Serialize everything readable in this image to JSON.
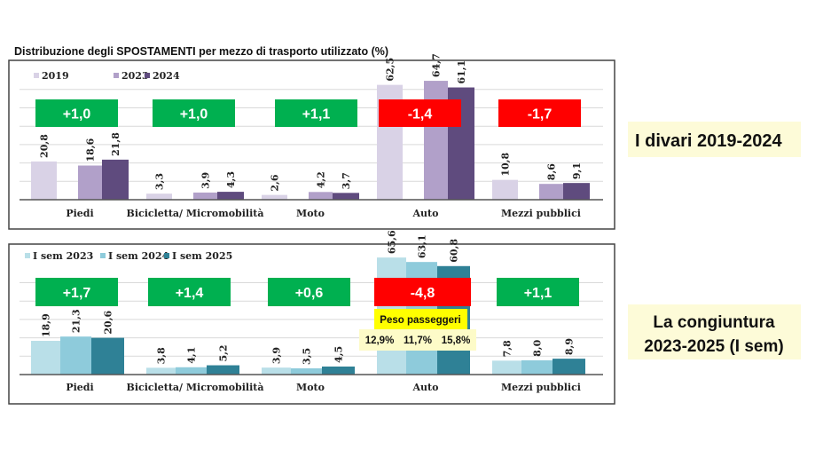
{
  "chart_data": [
    {
      "type": "bar",
      "title": "Distribuzione degli SPOSTAMENTI per mezzo di trasporto utilizzato (%)",
      "categories": [
        "Piedi",
        "Bicicletta/ Micromobilità",
        "Moto",
        "Auto",
        "Mezzi pubblici"
      ],
      "series": [
        {
          "name": "2019",
          "values": [
            20.8,
            3.3,
            2.6,
            62.5,
            10.8
          ],
          "labels": [
            "20,8",
            "3,3",
            "2,6",
            "62,5",
            "10,8"
          ],
          "color": "#d9d2e6"
        },
        {
          "name": "2023",
          "values": [
            18.6,
            3.9,
            4.2,
            64.7,
            8.6
          ],
          "labels": [
            "18,6",
            "3,9",
            "4,2",
            "64,7",
            "8,6"
          ],
          "color": "#b1a0c9"
        },
        {
          "name": "2024",
          "values": [
            21.8,
            4.3,
            3.7,
            61.1,
            9.1
          ],
          "labels": [
            "21,8",
            "4,3",
            "3,7",
            "61,1",
            "9,1"
          ],
          "color": "#5f4b7e"
        }
      ],
      "deltas": [
        "+1,0",
        "+1,0",
        "+1,1",
        "-1,4",
        "-1,7"
      ],
      "delta_colors": [
        "#00b050",
        "#00b050",
        "#00b050",
        "#ff0000",
        "#ff0000"
      ],
      "side_label": "I divari 2019-2024",
      "legend": "top-left",
      "grid": true
    },
    {
      "type": "bar",
      "categories": [
        "Piedi",
        "Bicicletta/ Micromobilità",
        "Moto",
        "Auto",
        "Mezzi pubblici"
      ],
      "series": [
        {
          "name": "I sem 2023",
          "values": [
            18.9,
            3.8,
            3.9,
            65.6,
            7.8
          ],
          "labels": [
            "18,9",
            "3,8",
            "3,9",
            "65,6",
            "7,8"
          ],
          "color": "#b9dfe8"
        },
        {
          "name": "I sem 2024",
          "values": [
            21.3,
            4.1,
            3.5,
            63.1,
            8.0
          ],
          "labels": [
            "21,3",
            "4,1",
            "3,5",
            "63,1",
            "8,0"
          ],
          "color": "#8ecbdb"
        },
        {
          "name": "I sem 2025",
          "values": [
            20.6,
            5.2,
            4.5,
            60.8,
            8.9
          ],
          "labels": [
            "20,6",
            "5,2",
            "4,5",
            "60,8",
            "8,9"
          ],
          "color": "#2f8196"
        }
      ],
      "deltas": [
        "+1,7",
        "+1,4",
        "+0,6",
        "-4,8",
        "+1,1"
      ],
      "delta_colors": [
        "#00b050",
        "#00b050",
        "#00b050",
        "#ff0000",
        "#00b050"
      ],
      "annotation": {
        "title": "Peso passeggeri",
        "values": [
          "12,9%",
          "11,7%",
          "15,8%"
        ]
      },
      "side_label": [
        "La congiuntura",
        "2023-2025 (I sem)"
      ],
      "legend": "top-left",
      "grid": true
    }
  ]
}
